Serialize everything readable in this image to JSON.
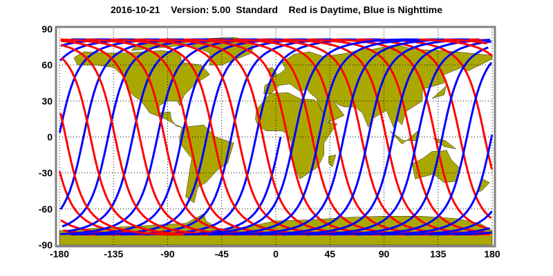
{
  "title": "2016-10-21    Version: 5.00  Standard    Red is Daytime, Blue is Nighttime",
  "chart_data": {
    "type": "line",
    "title": "2016-10-21    Version: 5.00  Standard    Red is Daytime, Blue is Nighttime",
    "xlabel": "",
    "ylabel": "",
    "xlim": [
      -180,
      180
    ],
    "ylim": [
      -90,
      90
    ],
    "x_ticks": [
      "-180",
      "-135",
      "-90",
      "-45",
      "0",
      "45",
      "90",
      "135",
      "180"
    ],
    "y_ticks": [
      "90",
      "60",
      "30",
      "0",
      "-30",
      "-60",
      "-90"
    ],
    "grid": true,
    "series": [
      {
        "label": "Red is Daytime",
        "color": "#ff0000"
      },
      {
        "label": "Blue is Nighttime",
        "color": "#0000ff"
      }
    ],
    "land_color": "#aaa800",
    "max_track_latitude": 81
  }
}
